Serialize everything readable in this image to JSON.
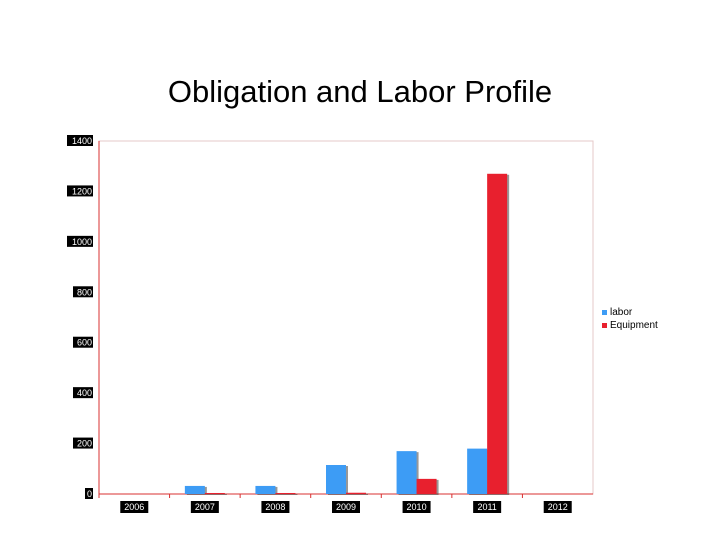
{
  "chart_data": {
    "type": "bar",
    "title": "Obligation and Labor Profile",
    "categories": [
      "2006",
      "2007",
      "2008",
      "2009",
      "2010",
      "2011",
      "2012"
    ],
    "series": [
      {
        "name": "labor",
        "color": "#3D9CF5",
        "values": [
          0,
          32,
          32,
          115,
          170,
          180,
          0
        ]
      },
      {
        "name": "Equipment",
        "color": "#E8202E",
        "values": [
          0,
          4,
          4,
          5,
          60,
          1270,
          0
        ]
      }
    ],
    "ylim": [
      0,
      1400
    ],
    "yticks": [
      "0",
      "200",
      "400",
      "600",
      "800",
      "1000",
      "1200",
      "1400"
    ],
    "grid": false,
    "legend_position": "right"
  }
}
